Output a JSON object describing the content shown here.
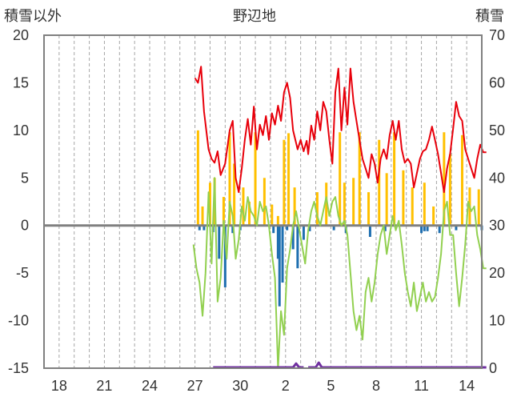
{
  "chart_data": {
    "type": "line",
    "title": "野辺地",
    "left_axis_label": "積雪以外",
    "right_axis_label": "積雪",
    "ylim_left": [
      -15,
      20
    ],
    "ylim_right": [
      0,
      70
    ],
    "y_ticks_left": [
      "20",
      "15",
      "10",
      "5",
      "0",
      "-5",
      "-10",
      "-15"
    ],
    "y_ticks_right": [
      "70",
      "60",
      "50",
      "40",
      "30",
      "20",
      "10",
      "0"
    ],
    "x_ticks": [
      "18",
      "21",
      "24",
      "27",
      "30",
      "2",
      "5",
      "8",
      "11",
      "14"
    ],
    "x_tick_days": [
      1,
      4,
      7,
      10,
      13,
      16,
      19,
      22,
      25,
      28
    ],
    "xlim": [
      0,
      29
    ],
    "grid": "vertical-dashed",
    "colors": {
      "max_temp": "#e8000b",
      "min_temp": "#92d050",
      "sunshine": "#ffc000",
      "precip": "#1f6fb0",
      "snow": "#7030a0",
      "frame": "#808080",
      "grid": "#a6a6a6"
    },
    "series": [
      {
        "key": "max_temp",
        "axis": "left",
        "points": [
          [
            10.0,
            15.5
          ],
          [
            10.2,
            15.0
          ],
          [
            10.4,
            16.7
          ],
          [
            10.6,
            12.0
          ],
          [
            10.9,
            8.0
          ],
          [
            11.1,
            7.0
          ],
          [
            11.3,
            6.6
          ],
          [
            11.5,
            7.8
          ],
          [
            11.7,
            5.3
          ],
          [
            12.0,
            6.5
          ],
          [
            12.3,
            10.0
          ],
          [
            12.5,
            11.0
          ],
          [
            12.7,
            5.0
          ],
          [
            12.9,
            3.5
          ],
          [
            13.1,
            6.0
          ],
          [
            13.3,
            9.0
          ],
          [
            13.5,
            11.2
          ],
          [
            13.7,
            8.5
          ],
          [
            13.9,
            12.5
          ],
          [
            14.1,
            8.0
          ],
          [
            14.3,
            10.6
          ],
          [
            14.5,
            9.5
          ],
          [
            14.7,
            11.5
          ],
          [
            14.9,
            9.0
          ],
          [
            15.1,
            11.8
          ],
          [
            15.3,
            10.6
          ],
          [
            15.5,
            12.6
          ],
          [
            15.7,
            11.0
          ],
          [
            15.9,
            14.0
          ],
          [
            16.1,
            15.0
          ],
          [
            16.3,
            13.4
          ],
          [
            16.5,
            10.0
          ],
          [
            16.8,
            8.0
          ],
          [
            17.0,
            9.0
          ],
          [
            17.2,
            7.8
          ],
          [
            17.4,
            8.9
          ],
          [
            17.5,
            7.5
          ],
          [
            17.7,
            10.5
          ],
          [
            17.9,
            9.0
          ],
          [
            18.1,
            12.0
          ],
          [
            18.3,
            10.0
          ],
          [
            18.5,
            13.0
          ],
          [
            18.7,
            12.0
          ],
          [
            18.9,
            9.0
          ],
          [
            19.1,
            6.5
          ],
          [
            19.3,
            14.0
          ],
          [
            19.5,
            16.5
          ],
          [
            19.7,
            10.0
          ],
          [
            19.9,
            14.5
          ],
          [
            20.1,
            10.6
          ],
          [
            20.3,
            16.5
          ],
          [
            20.5,
            13.0
          ],
          [
            20.7,
            11.0
          ],
          [
            20.9,
            9.0
          ],
          [
            21.1,
            7.0
          ],
          [
            21.3,
            6.0
          ],
          [
            21.5,
            5.0
          ],
          [
            21.7,
            7.5
          ],
          [
            21.9,
            6.5
          ],
          [
            22.1,
            4.5
          ],
          [
            22.3,
            7.0
          ],
          [
            22.5,
            8.0
          ],
          [
            22.7,
            7.0
          ],
          [
            22.9,
            9.5
          ],
          [
            23.1,
            11.0
          ],
          [
            23.3,
            9.0
          ],
          [
            23.5,
            11.0
          ],
          [
            23.7,
            8.0
          ],
          [
            23.9,
            6.6
          ],
          [
            24.1,
            7.0
          ],
          [
            24.3,
            6.5
          ],
          [
            24.5,
            4.0
          ],
          [
            24.7,
            5.5
          ],
          [
            24.9,
            7.0
          ],
          [
            25.1,
            7.8
          ],
          [
            25.3,
            8.0
          ],
          [
            25.5,
            9.0
          ],
          [
            25.7,
            10.4
          ],
          [
            25.9,
            9.0
          ],
          [
            26.1,
            7.5
          ],
          [
            26.3,
            5.5
          ],
          [
            26.5,
            3.5
          ],
          [
            26.7,
            6.0
          ],
          [
            26.9,
            7.5
          ],
          [
            27.1,
            10.2
          ],
          [
            27.3,
            13.0
          ],
          [
            27.5,
            11.5
          ],
          [
            27.7,
            11.0
          ],
          [
            27.9,
            8.0
          ],
          [
            28.1,
            7.0
          ],
          [
            28.3,
            6.0
          ],
          [
            28.5,
            5.0
          ],
          [
            28.7,
            7.0
          ],
          [
            28.9,
            8.5
          ],
          [
            29.1,
            7.7
          ],
          [
            29.3,
            7.7
          ]
        ]
      },
      {
        "key": "min_temp",
        "axis": "left",
        "points": [
          [
            9.9,
            -2.0
          ],
          [
            10.1,
            -4.5
          ],
          [
            10.3,
            -6.0
          ],
          [
            10.5,
            -9.5
          ],
          [
            10.7,
            -5.0
          ],
          [
            10.9,
            3.5
          ],
          [
            11.1,
            -4.0
          ],
          [
            11.3,
            5.0
          ],
          [
            11.5,
            -8.0
          ],
          [
            11.7,
            -5.5
          ],
          [
            11.9,
            0.5
          ],
          [
            12.1,
            -3.5
          ],
          [
            12.3,
            2.5
          ],
          [
            12.5,
            1.0
          ],
          [
            12.7,
            -3.5
          ],
          [
            12.9,
            -1.5
          ],
          [
            13.1,
            2.0
          ],
          [
            13.3,
            0.5
          ],
          [
            13.5,
            3.0
          ],
          [
            13.7,
            1.5
          ],
          [
            13.9,
            1.0
          ],
          [
            14.1,
            0.0
          ],
          [
            14.3,
            2.5
          ],
          [
            14.5,
            1.5
          ],
          [
            14.7,
            2.0
          ],
          [
            14.9,
            0.0
          ],
          [
            15.1,
            -3.0
          ],
          [
            15.3,
            -5.5
          ],
          [
            15.5,
            -15.0
          ],
          [
            15.7,
            -9.0
          ],
          [
            15.9,
            -11.5
          ],
          [
            16.1,
            -4.5
          ],
          [
            16.3,
            -2.5
          ],
          [
            16.5,
            0.0
          ],
          [
            16.7,
            1.5
          ],
          [
            17.3,
            -4.0
          ],
          [
            17.5,
            -0.5
          ],
          [
            17.7,
            1.5
          ],
          [
            17.9,
            2.5
          ],
          [
            18.1,
            1.0
          ],
          [
            18.3,
            0.0
          ],
          [
            18.5,
            1.5
          ],
          [
            18.7,
            3.0
          ],
          [
            18.9,
            1.0
          ],
          [
            19.1,
            2.5
          ],
          [
            19.3,
            3.0
          ],
          [
            19.5,
            1.0
          ],
          [
            19.7,
            0.0
          ],
          [
            19.9,
            0.5
          ],
          [
            20.1,
            -1.0
          ],
          [
            20.3,
            -5.0
          ],
          [
            20.5,
            -9.0
          ],
          [
            20.7,
            -11.0
          ],
          [
            20.9,
            -9.5
          ],
          [
            21.1,
            -12.0
          ],
          [
            21.3,
            -7.0
          ],
          [
            21.5,
            -5.5
          ],
          [
            21.7,
            -8.0
          ],
          [
            21.9,
            -6.0
          ],
          [
            22.1,
            -3.0
          ],
          [
            22.3,
            -1.0
          ],
          [
            22.5,
            0.0
          ],
          [
            22.7,
            -3.0
          ],
          [
            22.9,
            -1.0
          ],
          [
            23.1,
            1.0
          ],
          [
            23.3,
            -0.5
          ],
          [
            23.5,
            0.5
          ],
          [
            23.7,
            -2.0
          ],
          [
            23.9,
            -5.0
          ],
          [
            24.1,
            -7.0
          ],
          [
            24.3,
            -8.5
          ],
          [
            24.5,
            -6.0
          ],
          [
            24.7,
            -9.0
          ],
          [
            24.9,
            -7.5
          ],
          [
            25.1,
            -6.0
          ],
          [
            25.3,
            -8.0
          ],
          [
            25.5,
            -7.0
          ],
          [
            25.7,
            -8.0
          ],
          [
            25.9,
            -7.5
          ],
          [
            26.1,
            -5.5
          ],
          [
            26.3,
            -3.0
          ],
          [
            26.5,
            1.5
          ],
          [
            26.7,
            2.5
          ],
          [
            26.9,
            -1.0
          ],
          [
            27.1,
            -1.0
          ],
          [
            27.3,
            -5.0
          ],
          [
            27.5,
            -8.5
          ],
          [
            27.7,
            -5.5
          ],
          [
            27.9,
            -2.0
          ],
          [
            28.1,
            2.5
          ],
          [
            28.3,
            1.5
          ],
          [
            28.5,
            2.0
          ],
          [
            28.7,
            -1.0
          ],
          [
            28.9,
            -2.5
          ],
          [
            29.1,
            -4.5
          ],
          [
            29.3,
            -4.5
          ]
        ]
      }
    ],
    "sunshine_bars": [
      [
        10.2,
        10.0
      ],
      [
        10.5,
        2.0
      ],
      [
        11.0,
        4.5
      ],
      [
        11.3,
        5.0
      ],
      [
        11.9,
        3.0
      ],
      [
        12.3,
        9.8
      ],
      [
        12.6,
        6.5
      ],
      [
        13.2,
        4.0
      ],
      [
        13.6,
        2.5
      ],
      [
        14.0,
        9.8
      ],
      [
        14.6,
        5.0
      ],
      [
        15.1,
        2.2
      ],
      [
        15.5,
        1.0
      ],
      [
        15.9,
        9.0
      ],
      [
        16.2,
        9.7
      ],
      [
        16.6,
        4.0
      ],
      [
        18.1,
        3.5
      ],
      [
        18.7,
        4.5
      ],
      [
        19.6,
        9.8
      ],
      [
        19.9,
        4.5
      ],
      [
        20.5,
        5.0
      ],
      [
        20.9,
        9.8
      ],
      [
        21.5,
        3.5
      ],
      [
        22.2,
        9.0
      ],
      [
        22.7,
        5.5
      ],
      [
        23.2,
        9.8
      ],
      [
        23.8,
        5.8
      ],
      [
        24.4,
        4.0
      ],
      [
        25.2,
        4.5
      ],
      [
        25.8,
        2.0
      ],
      [
        26.5,
        9.8
      ],
      [
        26.9,
        7.5
      ],
      [
        27.7,
        9.5
      ],
      [
        28.2,
        4.0
      ],
      [
        28.8,
        3.8
      ]
    ],
    "precip_bars": [
      [
        10.3,
        -0.5
      ],
      [
        10.6,
        -0.5
      ],
      [
        11.2,
        -0.7
      ],
      [
        11.6,
        -3.5
      ],
      [
        12.0,
        -6.5
      ],
      [
        12.5,
        -0.8
      ],
      [
        13.0,
        -0.5
      ],
      [
        15.2,
        -0.8
      ],
      [
        15.5,
        -3.5
      ],
      [
        15.6,
        -8.5
      ],
      [
        15.8,
        -6.0
      ],
      [
        16.1,
        -0.5
      ],
      [
        16.5,
        -2.5
      ],
      [
        16.8,
        -4.5
      ],
      [
        17.2,
        -1.5
      ],
      [
        17.6,
        -0.6
      ],
      [
        19.2,
        -0.5
      ],
      [
        20.0,
        -0.8
      ],
      [
        21.6,
        -1.2
      ],
      [
        22.6,
        -0.6
      ],
      [
        25.0,
        -0.8
      ],
      [
        25.2,
        -0.6
      ],
      [
        25.4,
        -0.6
      ],
      [
        26.2,
        -0.8
      ],
      [
        27.3,
        -0.5
      ],
      [
        29.0,
        -0.5
      ]
    ],
    "snow_depth": {
      "axis": "right",
      "segments": [
        [
          [
            11.2,
            0
          ],
          [
            16.5,
            0
          ],
          [
            16.7,
            0.8
          ],
          [
            16.9,
            0
          ],
          [
            17.2,
            0
          ]
        ],
        [
          [
            17.5,
            0
          ],
          [
            18.0,
            0
          ],
          [
            18.2,
            1.0
          ],
          [
            18.4,
            0
          ],
          [
            29.3,
            0
          ]
        ]
      ]
    }
  }
}
